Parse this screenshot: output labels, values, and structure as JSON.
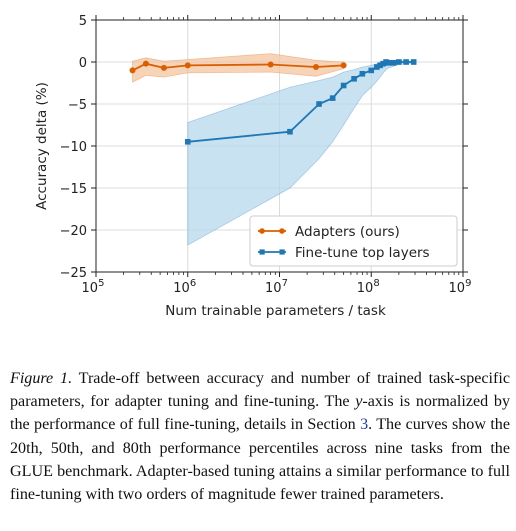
{
  "chart_data": {
    "type": "line",
    "xscale": "log",
    "xlabel": "Num trainable parameters / task",
    "ylabel": "Accuracy delta (%)",
    "xlim": [
      100000,
      1000000000
    ],
    "ylim": [
      -25,
      5
    ],
    "xticks": [
      {
        "value": 100000,
        "base": "10",
        "exp": "5"
      },
      {
        "value": 1000000,
        "base": "10",
        "exp": "6"
      },
      {
        "value": 10000000,
        "base": "10",
        "exp": "7"
      },
      {
        "value": 100000000,
        "base": "10",
        "exp": "8"
      },
      {
        "value": 1000000000,
        "base": "10",
        "exp": "9"
      }
    ],
    "yticks": [
      {
        "value": 5,
        "label": "5"
      },
      {
        "value": 0,
        "label": "0"
      },
      {
        "value": -5,
        "label": "−5"
      },
      {
        "value": -10,
        "label": "−10"
      },
      {
        "value": -15,
        "label": "−15"
      },
      {
        "value": -20,
        "label": "−20"
      },
      {
        "value": -25,
        "label": "−25"
      }
    ],
    "grid": true,
    "legend_position": "lower-right",
    "series": [
      {
        "name": "Adapters (ours)",
        "color": "#d95f02",
        "marker": "circle",
        "x": [
          250000,
          350000,
          550000,
          1000000,
          8000000,
          25000000,
          50000000
        ],
        "y": [
          -1.0,
          -0.2,
          -0.7,
          -0.4,
          -0.3,
          -0.6,
          -0.4
        ],
        "band_lower": [
          -2.4,
          -1.6,
          -1.8,
          -1.3,
          -1.2,
          -1.7,
          -0.8
        ],
        "band_upper": [
          0.1,
          0.5,
          0.1,
          0.3,
          1.0,
          0.2,
          0.0
        ]
      },
      {
        "name": "Fine-tune top layers",
        "color": "#1f77b4",
        "marker": "square",
        "x": [
          1000000,
          13000000,
          27000000,
          38000000,
          50000000,
          65000000,
          80000000,
          100000000,
          115000000,
          125000000,
          135000000,
          145000000,
          155000000,
          175000000,
          200000000,
          240000000,
          290000000
        ],
        "y": [
          -9.5,
          -8.3,
          -5.0,
          -4.3,
          -2.8,
          -2.0,
          -1.4,
          -1.0,
          -0.6,
          -0.4,
          -0.2,
          0.0,
          -0.1,
          -0.1,
          0.0,
          0.0,
          0.0
        ],
        "band_lower": [
          -21.8,
          -15.0,
          -11.5,
          -9.5,
          -7.5,
          -5.5,
          -4.0,
          -3.0,
          -2.3,
          -1.8,
          -1.3,
          -0.9,
          -0.7,
          -0.5,
          -0.3,
          -0.2,
          -0.1
        ],
        "band_upper": [
          -7.2,
          -3.0,
          -2.2,
          -1.8,
          -1.2,
          -0.9,
          -0.6,
          -0.4,
          -0.2,
          0.0,
          0.1,
          0.3,
          0.2,
          0.2,
          0.2,
          0.1,
          0.1
        ]
      }
    ]
  },
  "caption": {
    "label": "Figure 1.",
    "text_part1": " Trade-off between accuracy and number of trained task-specific parameters, for adapter tuning and fine-tuning. The ",
    "y_var": "y",
    "text_part2": "-axis is normalized by the performance of full fine-tuning, details in Section ",
    "section_ref": "3",
    "text_part3": ". The curves show the 20th, 50th, and 80th performance percentiles across nine tasks from the GLUE benchmark. Adapter-based tuning attains a similar performance to full fine-tuning with two orders of magnitude fewer trained parameters."
  }
}
